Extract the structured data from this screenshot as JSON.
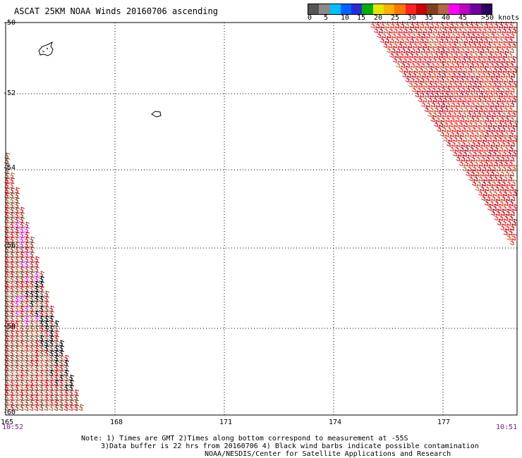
{
  "header": {
    "title": "ASCAT 25KM NOAA Winds 20160706 ascending"
  },
  "legend": {
    "colors": [
      "#555555",
      "#8a8a8a",
      "#00c0ff",
      "#0064ff",
      "#2a2ad8",
      "#00b000",
      "#e6e600",
      "#ffb000",
      "#ff7700",
      "#ff2020",
      "#cc0000",
      "#804020",
      "#b06840",
      "#ff00ff",
      "#c000c0",
      "#7000a0",
      "#300060"
    ],
    "ticks": [
      "0",
      "5",
      "10",
      "15",
      "20",
      "25",
      "30",
      "35",
      "40",
      "45",
      ">50 knots"
    ]
  },
  "axes": {
    "lat_labels": [
      "-50",
      "-52",
      "-54",
      "-56",
      "-58",
      "-60"
    ],
    "lon_labels": [
      "165",
      "168",
      "171",
      "174",
      "177"
    ]
  },
  "times": {
    "left": "10:52",
    "right": "10:51"
  },
  "notes": {
    "line1": "Note: 1) Times are GMT 2)Times along bottom correspond to measurement at -55S",
    "line2": "3)Data buffer is 22 hrs from 20160706 4) Black wind barbs indicate possible contamination",
    "line3": "NOAA/NESDIS/Center for Satellite Applications and Research"
  }
}
